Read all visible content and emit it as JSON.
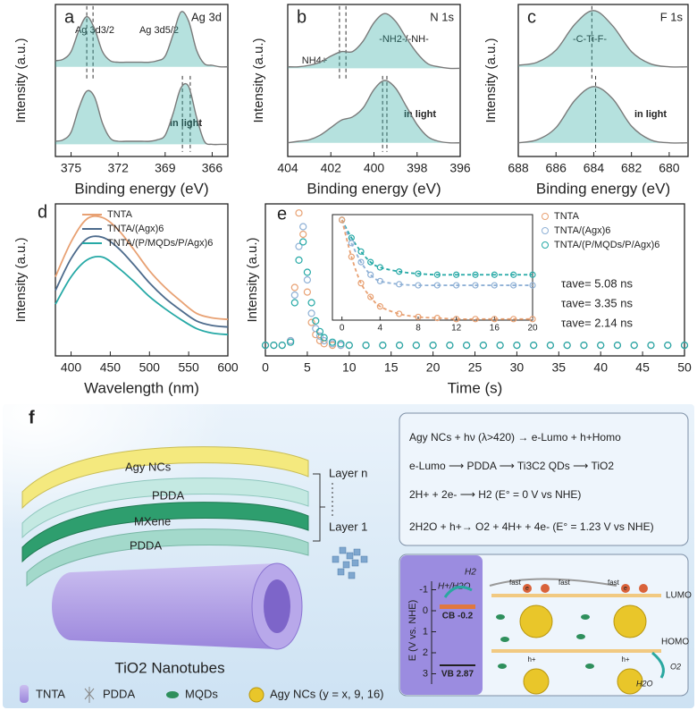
{
  "chart_data": [
    {
      "type": "line",
      "panel_label": "a",
      "title": "Ag 3d",
      "x_label": "Binding energy (eV)",
      "y_label": "Intensity (a.u.)",
      "labels": [
        "Ag 3d3/2",
        "Ag 3d5/2",
        "in light"
      ],
      "x": [
        376,
        375.5,
        375,
        374.5,
        374,
        373.5,
        373,
        372.5,
        372,
        371.5,
        371,
        370.5,
        370,
        369.5,
        369,
        368.5,
        368,
        367.5,
        367,
        366.5,
        366,
        365.5,
        365
      ],
      "series": [
        {
          "color": "#7a7a7a",
          "fill": "#2aa8a0",
          "values": [
            6.3,
            6.4,
            6.9,
            8.3,
            9.2,
            8.4,
            6.9,
            6.3,
            6.2,
            6.2,
            6.2,
            6.2,
            6.2,
            6.3,
            6.6,
            8.0,
            9.5,
            8.9,
            7.0,
            6.1,
            6.0,
            5.9,
            5.9
          ]
        },
        {
          "color": "#7a7a7a",
          "fill": "#2aa8a0",
          "values": [
            1.0,
            1.1,
            1.6,
            3.2,
            4.3,
            3.9,
            2.2,
            1.2,
            1.0,
            1.0,
            1.0,
            1.0,
            1.0,
            1.1,
            1.4,
            2.8,
            4.5,
            4.6,
            2.6,
            1.0,
            0.8,
            0.8,
            0.8
          ]
        }
      ],
      "reference_x": [
        374.0,
        373.6,
        367.9,
        367.4
      ],
      "xlim": [
        376,
        365
      ],
      "xticks": [
        375,
        372,
        369,
        366
      ],
      "ylim": [
        0,
        10
      ]
    },
    {
      "type": "line",
      "panel_label": "b",
      "title": "N 1s",
      "x_label": "Binding energy (eV)",
      "y_label": "Intensity (a.u.)",
      "labels": [
        "NH4+",
        "-NH2-/-NH-",
        "in light"
      ],
      "x": [
        404,
        403.5,
        403,
        402.5,
        402,
        401.5,
        401,
        400.5,
        400,
        399.5,
        399,
        398.5,
        398,
        397.5,
        397,
        396.5,
        396
      ],
      "series": [
        {
          "color": "#7a7a7a",
          "fill": "#2aa8a0",
          "values": [
            5.9,
            5.9,
            6.0,
            6.2,
            6.6,
            6.9,
            6.9,
            7.6,
            8.8,
            9.4,
            8.9,
            7.8,
            6.8,
            6.1,
            5.9,
            5.8,
            5.8
          ]
        },
        {
          "color": "#7a7a7a",
          "fill": "#2aa8a0",
          "values": [
            0.9,
            1.0,
            1.1,
            1.4,
            1.9,
            2.4,
            2.6,
            3.2,
            4.4,
            5.0,
            4.5,
            3.3,
            2.1,
            1.3,
            1.0,
            0.9,
            0.9
          ]
        }
      ],
      "reference_x": [
        401.6,
        401.3,
        399.6,
        399.4
      ],
      "xlim": [
        404,
        396
      ],
      "xticks": [
        404,
        402,
        400,
        398,
        396
      ],
      "ylim": [
        0,
        10
      ]
    },
    {
      "type": "line",
      "panel_label": "c",
      "title": "F 1s",
      "x_label": "Binding energy (eV)",
      "y_label": "Intensity (a.u.)",
      "labels": [
        "-C-Ti-F-",
        "in light"
      ],
      "x": [
        688,
        687,
        686,
        685,
        684,
        683,
        682,
        681,
        680,
        679
      ],
      "series": [
        {
          "color": "#7a7a7a",
          "fill": "#2aa8a0",
          "values": [
            6.0,
            6.2,
            7.0,
            8.7,
            9.6,
            8.6,
            6.9,
            6.1,
            5.9,
            5.9
          ]
        },
        {
          "color": "#7a7a7a",
          "fill": "#2aa8a0",
          "values": [
            0.9,
            1.1,
            1.9,
            3.7,
            4.6,
            3.8,
            2.0,
            1.1,
            0.9,
            0.9
          ]
        }
      ],
      "reference_x": [
        684.1,
        683.9
      ],
      "xlim": [
        688,
        679
      ],
      "xticks": [
        688,
        686,
        684,
        682,
        680
      ],
      "ylim": [
        0,
        10
      ]
    },
    {
      "type": "line",
      "panel_label": "d",
      "x_label": "Wavelength (nm)",
      "y_label": "Intensity (a.u.)",
      "x": [
        380,
        400,
        420,
        440,
        460,
        480,
        500,
        520,
        540,
        560,
        580,
        600
      ],
      "series": [
        {
          "name": "TNTA",
          "color": "#e8a173",
          "values": [
            5.2,
            7.5,
            9.0,
            9.1,
            8.3,
            7.0,
            5.6,
            4.5,
            3.6,
            2.8,
            2.5,
            2.4
          ]
        },
        {
          "name": "TNTA/(Agx)6",
          "color": "#4d6b8c",
          "values": [
            4.3,
            6.4,
            7.7,
            7.8,
            7.1,
            6.0,
            4.8,
            3.8,
            3.0,
            2.3,
            2.0,
            1.9
          ]
        },
        {
          "name": "TNTA/(P/MQDs/P/Agx)6",
          "color": "#26a9a6",
          "values": [
            3.4,
            5.2,
            6.3,
            6.5,
            5.8,
            4.9,
            3.9,
            3.1,
            2.4,
            1.8,
            1.5,
            1.4
          ]
        }
      ],
      "xlim": [
        380,
        600
      ],
      "xticks": [
        400,
        450,
        500,
        550,
        600
      ],
      "ylim": [
        0,
        10
      ]
    },
    {
      "type": "scatter",
      "panel_label": "e",
      "x_label": "Time (s)",
      "y_label": "Intensity (a.u.)",
      "annotations": [
        "τave= 5.08 ns",
        "τave= 3.35 ns",
        "τave= 2.14 ns"
      ],
      "x": [
        0,
        1,
        2,
        3,
        3.5,
        4,
        4.5,
        5,
        5.5,
        6,
        6.5,
        7,
        8,
        9,
        10,
        12,
        14,
        16,
        18,
        20,
        22,
        24,
        26,
        28,
        30,
        32,
        34,
        36,
        38,
        40,
        42,
        44,
        46,
        48,
        50
      ],
      "series": [
        {
          "name": "TNTA",
          "color": "#e8a173",
          "values": [
            0.7,
            0.7,
            0.7,
            1.0,
            4.5,
            9.4,
            8.0,
            4.2,
            2.2,
            1.4,
            1.0,
            0.8,
            0.7,
            0.7,
            0.7,
            0.7,
            0.7,
            0.7,
            0.7,
            0.7,
            0.7,
            0.7,
            0.7,
            0.7,
            0.7,
            0.7,
            0.7,
            0.7,
            0.7,
            0.7,
            0.7,
            0.7,
            0.7,
            0.7,
            0.7
          ]
        },
        {
          "name": "TNTA/(Agx)6",
          "color": "#8fb1d6",
          "values": [
            0.7,
            0.7,
            0.7,
            1.0,
            4.0,
            7.2,
            8.5,
            5.0,
            2.8,
            1.8,
            1.3,
            1.0,
            0.8,
            0.7,
            0.7,
            0.7,
            0.7,
            0.7,
            0.7,
            0.7,
            0.7,
            0.7,
            0.7,
            0.7,
            0.7,
            0.7,
            0.7,
            0.7,
            0.7,
            0.7,
            0.7,
            0.7,
            0.7,
            0.7,
            0.7
          ]
        },
        {
          "name": "TNTA/(P/MQDs/P/Agx)6",
          "color": "#26a9a6",
          "values": [
            0.7,
            0.7,
            0.7,
            0.9,
            3.5,
            6.3,
            7.5,
            5.5,
            3.5,
            2.3,
            1.6,
            1.2,
            0.9,
            0.8,
            0.7,
            0.7,
            0.7,
            0.7,
            0.7,
            0.7,
            0.7,
            0.7,
            0.7,
            0.7,
            0.7,
            0.7,
            0.7,
            0.7,
            0.7,
            0.7,
            0.7,
            0.7,
            0.7,
            0.7,
            0.7
          ]
        }
      ],
      "xlim": [
        0,
        50
      ],
      "xticks": [
        0,
        5,
        10,
        15,
        20,
        25,
        30,
        35,
        40,
        45,
        50
      ],
      "ylim": [
        0,
        10
      ],
      "inset": {
        "x": [
          0,
          1,
          2,
          3,
          4,
          6,
          8,
          10,
          12,
          14,
          16,
          18,
          20
        ],
        "series": [
          {
            "color": "#26a9a6",
            "values": [
              9.5,
              7.8,
              6.5,
              5.5,
              5.0,
              4.6,
              4.4,
              4.3,
              4.3,
              4.3,
              4.3,
              4.3,
              4.3
            ]
          },
          {
            "color": "#8fb1d6",
            "values": [
              9.5,
              7.3,
              5.5,
              4.3,
              3.7,
              3.4,
              3.3,
              3.3,
              3.3,
              3.3,
              3.3,
              3.3,
              3.3
            ]
          },
          {
            "color": "#e8a173",
            "values": [
              9.5,
              6.0,
              3.5,
              2.2,
              1.3,
              0.6,
              0.3,
              0.2,
              0.1,
              0.1,
              0.1,
              0.1,
              0.1
            ]
          }
        ],
        "xlim": [
          -1,
          20
        ],
        "xticks": [
          0,
          4,
          8,
          12,
          16,
          20
        ],
        "ylim": [
          0,
          10
        ]
      }
    }
  ],
  "diagram": {
    "panel_label": "f",
    "layers": [
      "Agy NCs",
      "PDDA",
      "MXene",
      "PDDA"
    ],
    "nanotube": "TiO2 Nanotubes",
    "layer_top": "Layer n",
    "layer_bottom": "Layer 1",
    "equations": [
      "Agy NCs + hν (λ>420) → e-Lumo + h+Homo",
      "e-Lumo ⟶ PDDA ⟶ Ti3C2 QDs ⟶ TiO2",
      "2H+ + 2e-  ⟶  H2 (E° = 0 V vs NHE)",
      "2H2O + h+→ O2 + 4H+ + 4e- (E° = 1.23 V vs NHE)"
    ],
    "legend": [
      "TNTA",
      "PDDA",
      "MQDs",
      "Agy NCs (y = x, 9, 16)"
    ],
    "energy": {
      "axis_label": "E (V vs. NHE)",
      "ticks": [
        -1,
        0,
        1,
        2,
        3
      ],
      "cb": "CB -0.2",
      "vb": "VB 2.87",
      "h2": "H2",
      "h_h2o": "H+/H2O",
      "lumo": "LUMO",
      "homo": "HOMO",
      "o2": "O2",
      "h2o": "H2O",
      "fast": "fast",
      "electron": "e",
      "hole": "h+"
    }
  }
}
